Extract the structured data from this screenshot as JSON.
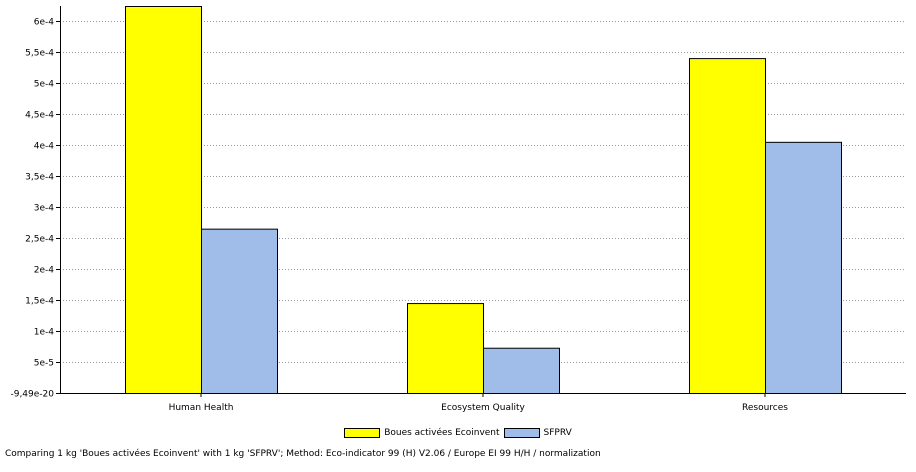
{
  "chart_data": {
    "type": "bar",
    "categories": [
      "Human Health",
      "Ecosystem Quality",
      "Resources"
    ],
    "series": [
      {
        "name": "Boues activées Ecoinvent",
        "color": "#ffff00",
        "values": [
          0.000624,
          0.000145,
          0.00054
        ]
      },
      {
        "name": "SFPRV",
        "color": "#a0bce8",
        "values": [
          0.000265,
          7.3e-05,
          0.000405
        ]
      }
    ],
    "yticks": [
      {
        "value": -9.49e-20,
        "label": "-9,49e-20"
      },
      {
        "value": 5e-05,
        "label": "5e-5"
      },
      {
        "value": 0.0001,
        "label": "1e-4"
      },
      {
        "value": 0.00015,
        "label": "1,5e-4"
      },
      {
        "value": 0.0002,
        "label": "2e-4"
      },
      {
        "value": 0.00025,
        "label": "2,5e-4"
      },
      {
        "value": 0.0003,
        "label": "3e-4"
      },
      {
        "value": 0.00035,
        "label": "3,5e-4"
      },
      {
        "value": 0.0004,
        "label": "4e-4"
      },
      {
        "value": 0.00045,
        "label": "4,5e-4"
      },
      {
        "value": 0.0005,
        "label": "5e-4"
      },
      {
        "value": 0.00055,
        "label": "5,5e-4"
      },
      {
        "value": 0.0006,
        "label": "6e-4"
      }
    ],
    "ylim": [
      -9.49e-20,
      0.000624
    ],
    "grid": true,
    "legend_position": "bottom"
  },
  "caption": "Comparing 1 kg 'Boues activées Ecoinvent' with 1 kg 'SFPRV';  Method: Eco-indicator 99 (H) V2.06 /  Europe EI 99 H/H / normalization"
}
